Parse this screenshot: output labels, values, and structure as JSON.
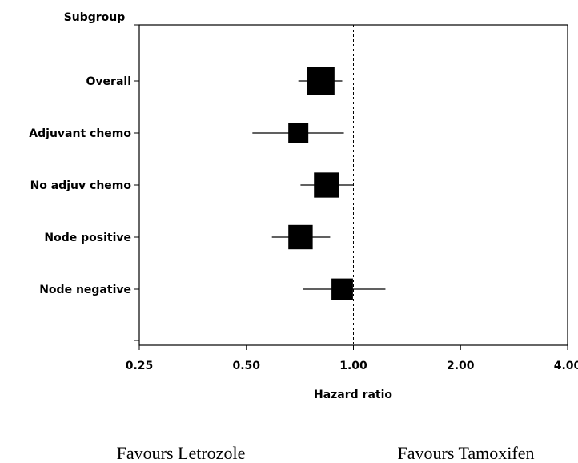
{
  "chart_data": {
    "type": "forest",
    "y_axis_title": "Subgroup",
    "xlabel": "Hazard ratio",
    "x_scale": "log2",
    "xlim": [
      0.25,
      4.0
    ],
    "x_ticks": [
      0.25,
      0.5,
      1.0,
      2.0,
      4.0
    ],
    "x_tick_labels": [
      "0.25",
      "0.50",
      "1.00",
      "2.00",
      "4.00"
    ],
    "reference_line": 1.0,
    "rows": [
      {
        "label": "Overall",
        "hr": 0.81,
        "ci_low": 0.7,
        "ci_high": 0.93,
        "weight": 1.0
      },
      {
        "label": "Adjuvant chemo",
        "hr": 0.7,
        "ci_low": 0.52,
        "ci_high": 0.94,
        "weight": 0.5
      },
      {
        "label": "No adjuv chemo",
        "hr": 0.84,
        "ci_low": 0.71,
        "ci_high": 1.0,
        "weight": 0.85
      },
      {
        "label": "Node positive",
        "hr": 0.71,
        "ci_low": 0.59,
        "ci_high": 0.86,
        "weight": 0.8
      },
      {
        "label": "Node negative",
        "hr": 0.93,
        "ci_low": 0.72,
        "ci_high": 1.23,
        "weight": 0.6
      }
    ],
    "favours_left": "Favours Letrozole",
    "favours_right": "Favours Tamoxifen"
  }
}
